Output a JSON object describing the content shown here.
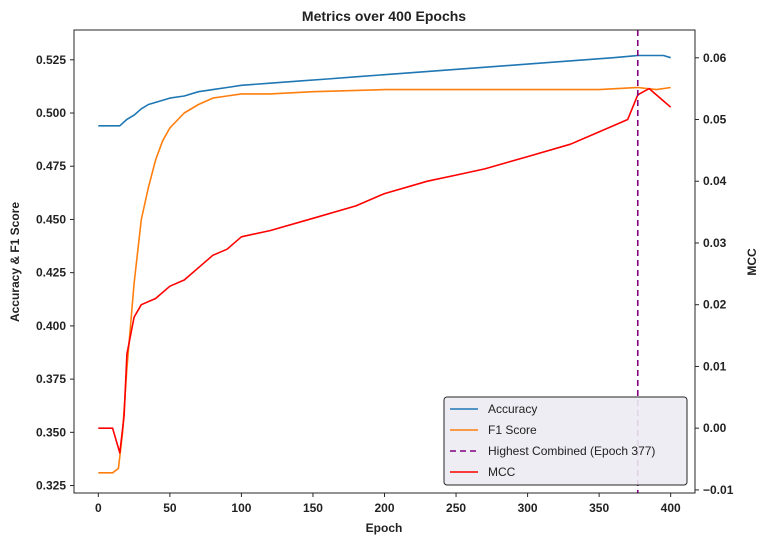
{
  "chart_data": {
    "type": "line",
    "title": "Metrics over 400 Epochs",
    "xlabel": "Epoch",
    "ylabel_left": "Accuracy & F1 Score",
    "ylabel_right": "MCC",
    "xlim": [
      -17,
      417
    ],
    "ylim_left": [
      0.3215,
      0.539
    ],
    "ylim_right": [
      -0.0105,
      0.0645
    ],
    "x_ticks": [
      0,
      50,
      100,
      150,
      200,
      250,
      300,
      350,
      400
    ],
    "y_ticks_left": [
      0.325,
      0.35,
      0.375,
      0.4,
      0.425,
      0.45,
      0.475,
      0.5,
      0.525
    ],
    "y_tick_labels_left": [
      "0.325",
      "0.350",
      "0.375",
      "0.400",
      "0.425",
      "0.450",
      "0.475",
      "0.500",
      "0.525"
    ],
    "y_ticks_right": [
      -0.01,
      0.0,
      0.01,
      0.02,
      0.03,
      0.04,
      0.05,
      0.06
    ],
    "y_tick_labels_right": [
      "−0.01",
      "0.00",
      "0.01",
      "0.02",
      "0.03",
      "0.04",
      "0.05",
      "0.06"
    ],
    "series": [
      {
        "name": "Accuracy",
        "axis": "left",
        "color": "#1f77b4",
        "x": [
          0,
          10,
          15,
          20,
          25,
          30,
          35,
          40,
          50,
          60,
          70,
          80,
          90,
          100,
          120,
          140,
          160,
          180,
          200,
          220,
          240,
          260,
          280,
          300,
          320,
          340,
          360,
          377,
          385,
          395,
          400
        ],
        "y": [
          0.494,
          0.494,
          0.494,
          0.497,
          0.499,
          0.502,
          0.504,
          0.505,
          0.507,
          0.508,
          0.51,
          0.511,
          0.512,
          0.513,
          0.514,
          0.515,
          0.516,
          0.517,
          0.518,
          0.519,
          0.52,
          0.521,
          0.522,
          0.523,
          0.524,
          0.525,
          0.526,
          0.527,
          0.527,
          0.527,
          0.526
        ]
      },
      {
        "name": "F1 Score",
        "axis": "left",
        "color": "#ff7f0e",
        "x": [
          0,
          10,
          14,
          17,
          20,
          25,
          30,
          35,
          40,
          45,
          50,
          60,
          70,
          80,
          90,
          100,
          120,
          150,
          200,
          250,
          300,
          350,
          377,
          390,
          400
        ],
        "y": [
          0.331,
          0.331,
          0.333,
          0.35,
          0.38,
          0.42,
          0.45,
          0.465,
          0.478,
          0.487,
          0.493,
          0.5,
          0.504,
          0.507,
          0.508,
          0.509,
          0.509,
          0.51,
          0.511,
          0.511,
          0.511,
          0.511,
          0.512,
          0.511,
          0.512
        ]
      },
      {
        "name": "MCC",
        "axis": "right",
        "color": "#ff0000",
        "x": [
          0,
          10,
          15,
          18,
          20,
          25,
          30,
          40,
          50,
          60,
          70,
          80,
          90,
          100,
          120,
          150,
          180,
          200,
          230,
          250,
          270,
          300,
          330,
          350,
          370,
          377,
          385,
          395,
          400
        ],
        "y": [
          0.0,
          0.0,
          -0.004,
          0.002,
          0.012,
          0.018,
          0.02,
          0.021,
          0.023,
          0.024,
          0.026,
          0.028,
          0.029,
          0.031,
          0.032,
          0.034,
          0.036,
          0.038,
          0.04,
          0.041,
          0.042,
          0.044,
          0.046,
          0.048,
          0.05,
          0.054,
          0.055,
          0.053,
          0.052
        ]
      }
    ],
    "vline": {
      "name": "Highest Combined (Epoch 377)",
      "x": 377,
      "color": "#800080",
      "style": "dashed"
    },
    "legend": {
      "position": "lower-right",
      "entries": [
        "Accuracy",
        "F1 Score",
        "Highest Combined (Epoch 377)",
        "MCC"
      ]
    },
    "grid": false
  }
}
